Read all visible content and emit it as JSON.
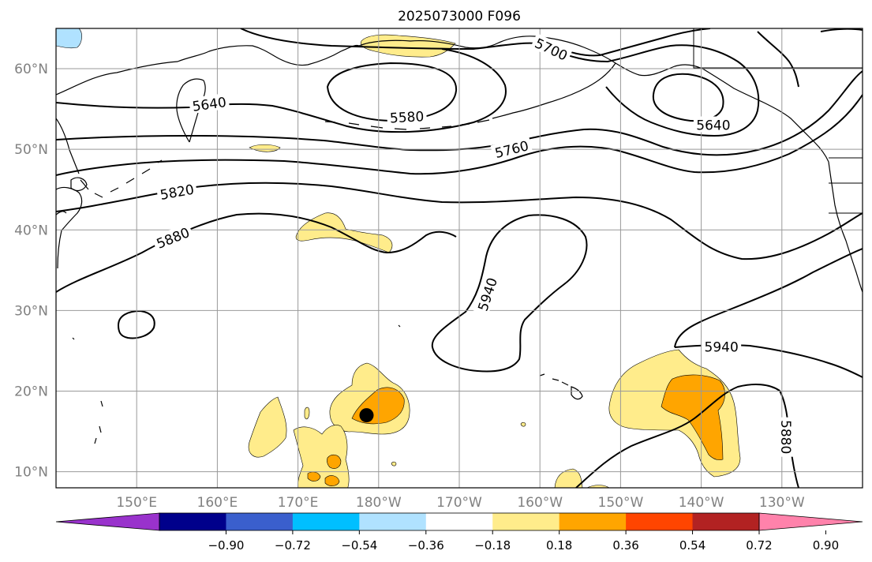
{
  "map": {
    "title": "2025073000 F096",
    "projection": "PlateCarree (central longitude 180)",
    "extent": {
      "lon_min": 140,
      "lon_max": 240,
      "lat_min": 8,
      "lat_max": 65
    },
    "lon_ticks": [
      {
        "lon": 150,
        "label": "150°E"
      },
      {
        "lon": 160,
        "label": "160°E"
      },
      {
        "lon": 170,
        "label": "170°E"
      },
      {
        "lon": 180,
        "label": "180°W"
      },
      {
        "lon": 190,
        "label": "170°W"
      },
      {
        "lon": 200,
        "label": "160°W"
      },
      {
        "lon": 210,
        "label": "150°W"
      },
      {
        "lon": 220,
        "label": "140°W"
      },
      {
        "lon": 230,
        "label": "130°W"
      }
    ],
    "lat_ticks": [
      {
        "lat": 10,
        "label": "10°N"
      },
      {
        "lat": 20,
        "label": "20°N"
      },
      {
        "lat": 30,
        "label": "30°N"
      },
      {
        "lat": 40,
        "label": "40°N"
      },
      {
        "lat": 50,
        "label": "50°N"
      },
      {
        "lat": 60,
        "label": "60°N"
      }
    ],
    "gridlines": true,
    "contour_labels": [
      {
        "text": "5700",
        "lon": 201.4,
        "lat": 62.4,
        "rotate": 25
      },
      {
        "text": "5640",
        "lon": 159.0,
        "lat": 55.6,
        "rotate": -8
      },
      {
        "text": "5580",
        "lon": 183.5,
        "lat": 54.0,
        "rotate": -3
      },
      {
        "text": "5640",
        "lon": 221.5,
        "lat": 53.0,
        "rotate": 0
      },
      {
        "text": "5760",
        "lon": 196.5,
        "lat": 50.0,
        "rotate": -14
      },
      {
        "text": "5820",
        "lon": 155.0,
        "lat": 44.7,
        "rotate": -10
      },
      {
        "text": "5880",
        "lon": 154.5,
        "lat": 39.0,
        "rotate": -22
      },
      {
        "text": "5940",
        "lon": 193.5,
        "lat": 32.0,
        "rotate": -72
      },
      {
        "text": "5940",
        "lon": 222.5,
        "lat": 25.5,
        "rotate": 0
      },
      {
        "text": "5880",
        "lon": 230.5,
        "lat": 14.3,
        "rotate": 90
      }
    ],
    "marker": {
      "lon": 178.5,
      "lat": 17.0,
      "color": "#000000"
    },
    "colors": {
      "land_edge": "#000000",
      "grid": "#999999",
      "tick_label": "#808080"
    }
  },
  "colorbar": {
    "extend": "both",
    "ticks": [
      "−0.90",
      "−0.72",
      "−0.54",
      "−0.36",
      "−0.18",
      "0.18",
      "0.36",
      "0.54",
      "0.72",
      "0.90"
    ],
    "colors": [
      "#9932cc",
      "#00008b",
      "#3a5fcd",
      "#00bfff",
      "#b0e2ff",
      "#ffffff",
      "#ffec8b",
      "#ffa500",
      "#ff4500",
      "#b22222",
      "#ff82ab"
    ]
  }
}
